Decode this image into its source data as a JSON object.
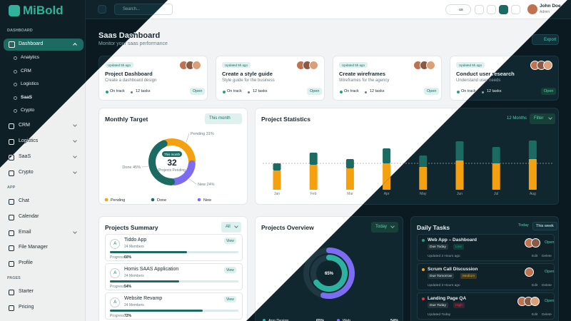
{
  "sidebar": {
    "brand": "MiBold",
    "dashboard_label": "DASHBOARD",
    "dashboard": "Dashboard",
    "dashboard_items": [
      "Analytics",
      "CRM",
      "Logistics",
      "SaaS",
      "Crypto"
    ],
    "modules": [
      "CRM",
      "Logistics",
      "SaaS",
      "Crypto"
    ],
    "app_label": "APP",
    "app_items": [
      "Chat",
      "Calendar",
      "Email",
      "File Manager",
      "Profile"
    ],
    "pages_label": "PAGES",
    "pages_items": [
      "Starter",
      "Pricing"
    ]
  },
  "header": {
    "search": "Search...",
    "language": "us",
    "user": "John Doe",
    "role": "Admin"
  },
  "page": {
    "title": "Saas Dashboard",
    "subtitle": "Monitor your saas performance",
    "export": "Export"
  },
  "projects": [
    {
      "updated": "Updated 5h ago",
      "title": "Project Dashboard",
      "description": "Create a dashboard design",
      "status": "On track",
      "tasks": "12 tasks",
      "action": "Open"
    },
    {
      "updated": "Updated 5h ago",
      "title": "Create a style guide",
      "description": "Style guide for the business",
      "status": "On track",
      "tasks": "12 tasks",
      "action": "Open"
    },
    {
      "updated": "Updated 5h ago",
      "title": "Create wireframes",
      "description": "Wireframes for the agency",
      "status": "On track",
      "tasks": "12 tasks",
      "action": "Open"
    },
    {
      "updated": "Updated 5h ago",
      "title": "Conduct user research",
      "description": "Understand user needs",
      "status": "On track",
      "tasks": "12 tasks",
      "action": "Open"
    }
  ],
  "chart_data": [
    {
      "type": "donut",
      "title": "Monthly Target",
      "filter": "This month",
      "center_label": "This month",
      "center_value": 32,
      "center_caption": "Projects Pending",
      "categories": [
        "Pending",
        "Done",
        "New"
      ],
      "values": [
        31,
        45,
        24
      ],
      "value_labels": [
        "Pending 31%",
        "Done 45%",
        "New 24%"
      ],
      "colors": [
        "#f5a00f",
        "#1b6b62",
        "#7c6cf2"
      ]
    },
    {
      "type": "bar",
      "title": "Project Statistics",
      "range": "12 Months",
      "filter": "Filter",
      "categories": [
        "Jan",
        "Feb",
        "Mar",
        "Apr",
        "May",
        "Jun",
        "Jul",
        "Aug"
      ],
      "series": [
        {
          "color": "#f5a00f",
          "values": [
            27,
            35,
            30,
            37,
            32,
            41,
            37,
            43
          ]
        },
        {
          "color": "#1b6b62",
          "values": [
            10,
            17,
            13,
            21,
            16,
            27,
            23,
            26
          ]
        }
      ],
      "stacked": true,
      "ylim": [
        0,
        80
      ],
      "reference_line": 37
    },
    {
      "type": "radial",
      "title": "Projects Overview",
      "filter": "Today",
      "categories": [
        "App Design",
        "Web"
      ],
      "values": [
        65,
        54
      ],
      "value_labels": [
        "65%",
        "54%"
      ],
      "colors": [
        "#2bb3a0",
        "#7c6cf2"
      ]
    }
  ],
  "projects_summary": {
    "title": "Projects Summary",
    "filter": "All",
    "progress_label": "Progress",
    "items": [
      {
        "initial": "A",
        "name": "Tiddo App",
        "members": "24 Members",
        "action": "View",
        "progress": 60,
        "progress_text": "60%"
      },
      {
        "initial": "A",
        "name": "Homis SAAS Application",
        "members": "24 Members",
        "action": "View",
        "progress": 54,
        "progress_text": "54%"
      },
      {
        "initial": "A",
        "name": "Website Revamp",
        "members": "24 Members",
        "action": "View",
        "progress": 72,
        "progress_text": "72%"
      }
    ]
  },
  "daily_tasks": {
    "title": "Daily Tasks",
    "tabs": [
      "Today",
      "This week"
    ],
    "action": "Open",
    "edit": "Edit",
    "delete": "Delete",
    "items": [
      {
        "title": "Web App – Dashboard",
        "due": "Due Today",
        "priority": "Low",
        "updated": "Updated 2 Hours ago"
      },
      {
        "title": "Scrum Call Discussion",
        "due": "Due Tomorrow",
        "priority": "Medium",
        "updated": "Updated 3 Hours ago"
      },
      {
        "title": "Landing Page QA",
        "due": "Due Today",
        "priority": "High",
        "updated": "Updated Today"
      }
    ]
  }
}
